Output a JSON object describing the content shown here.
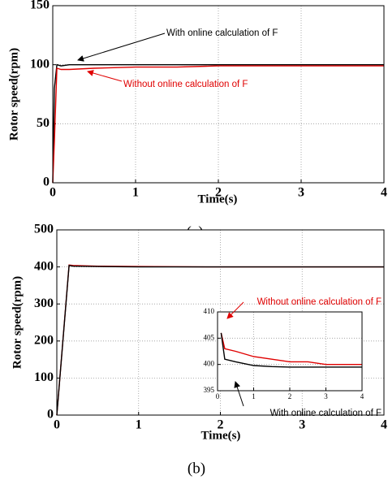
{
  "chart_data": [
    {
      "type": "line",
      "caption": "(a)",
      "xlabel": "Time(s)",
      "ylabel": "Rotor speed(rpm)",
      "xlim": [
        0,
        4
      ],
      "xticks": [
        0,
        1,
        2,
        3,
        4
      ],
      "ylim": [
        0,
        150
      ],
      "yticks": [
        0,
        50,
        100,
        150
      ],
      "grid": true,
      "x": [
        0,
        0.02,
        0.05,
        0.1,
        0.2,
        0.5,
        1,
        1.5,
        2,
        2.5,
        3,
        3.5,
        4
      ],
      "series": [
        {
          "name": "With online calculation of F",
          "color": "#000000",
          "values": [
            0,
            80,
            100,
            99,
            100,
            100,
            100,
            100,
            100,
            100,
            100,
            100,
            100
          ]
        },
        {
          "name": "Without online calculation of F",
          "color": "#e00000",
          "values": [
            0,
            35,
            97,
            96,
            96,
            97,
            98,
            98,
            99,
            99,
            99,
            99,
            99
          ]
        }
      ]
    },
    {
      "type": "line",
      "caption": "(b)",
      "xlabel": "Time(s)",
      "ylabel": "Rotor speed(rpm)",
      "xlim": [
        0,
        4
      ],
      "xticks": [
        0,
        1,
        2,
        3,
        4
      ],
      "ylim": [
        0,
        500
      ],
      "yticks": [
        0,
        100,
        200,
        300,
        400,
        500
      ],
      "grid": true,
      "x": [
        0,
        0.15,
        0.2,
        0.5,
        1,
        2,
        3,
        4
      ],
      "series": [
        {
          "color": "#e00000",
          "values": [
            0,
            405,
            404,
            402,
            401,
            400,
            400,
            400
          ]
        },
        {
          "color": "#000000",
          "values": [
            0,
            404,
            402,
            401,
            400,
            400,
            400,
            400
          ]
        }
      ]
    },
    {
      "type": "line",
      "xlim": [
        0,
        4
      ],
      "xticks": [
        0,
        1,
        2,
        3,
        4
      ],
      "ylim": [
        395,
        410
      ],
      "yticks": [
        395,
        400,
        405,
        410
      ],
      "grid": true,
      "x": [
        0.1,
        0.2,
        0.5,
        1,
        1.5,
        2,
        2.5,
        3,
        3.5,
        4
      ],
      "series": [
        {
          "name": "Without online calculation of F",
          "color": "#e00000",
          "values": [
            406,
            403,
            402.5,
            401.5,
            401,
            400.5,
            400.5,
            400,
            400,
            400
          ]
        },
        {
          "name": "With online calculation of F",
          "color": "#000000",
          "values": [
            406,
            401,
            400.5,
            399.8,
            399.6,
            399.5,
            399.5,
            399.5,
            399.5,
            399.5
          ]
        }
      ]
    }
  ]
}
